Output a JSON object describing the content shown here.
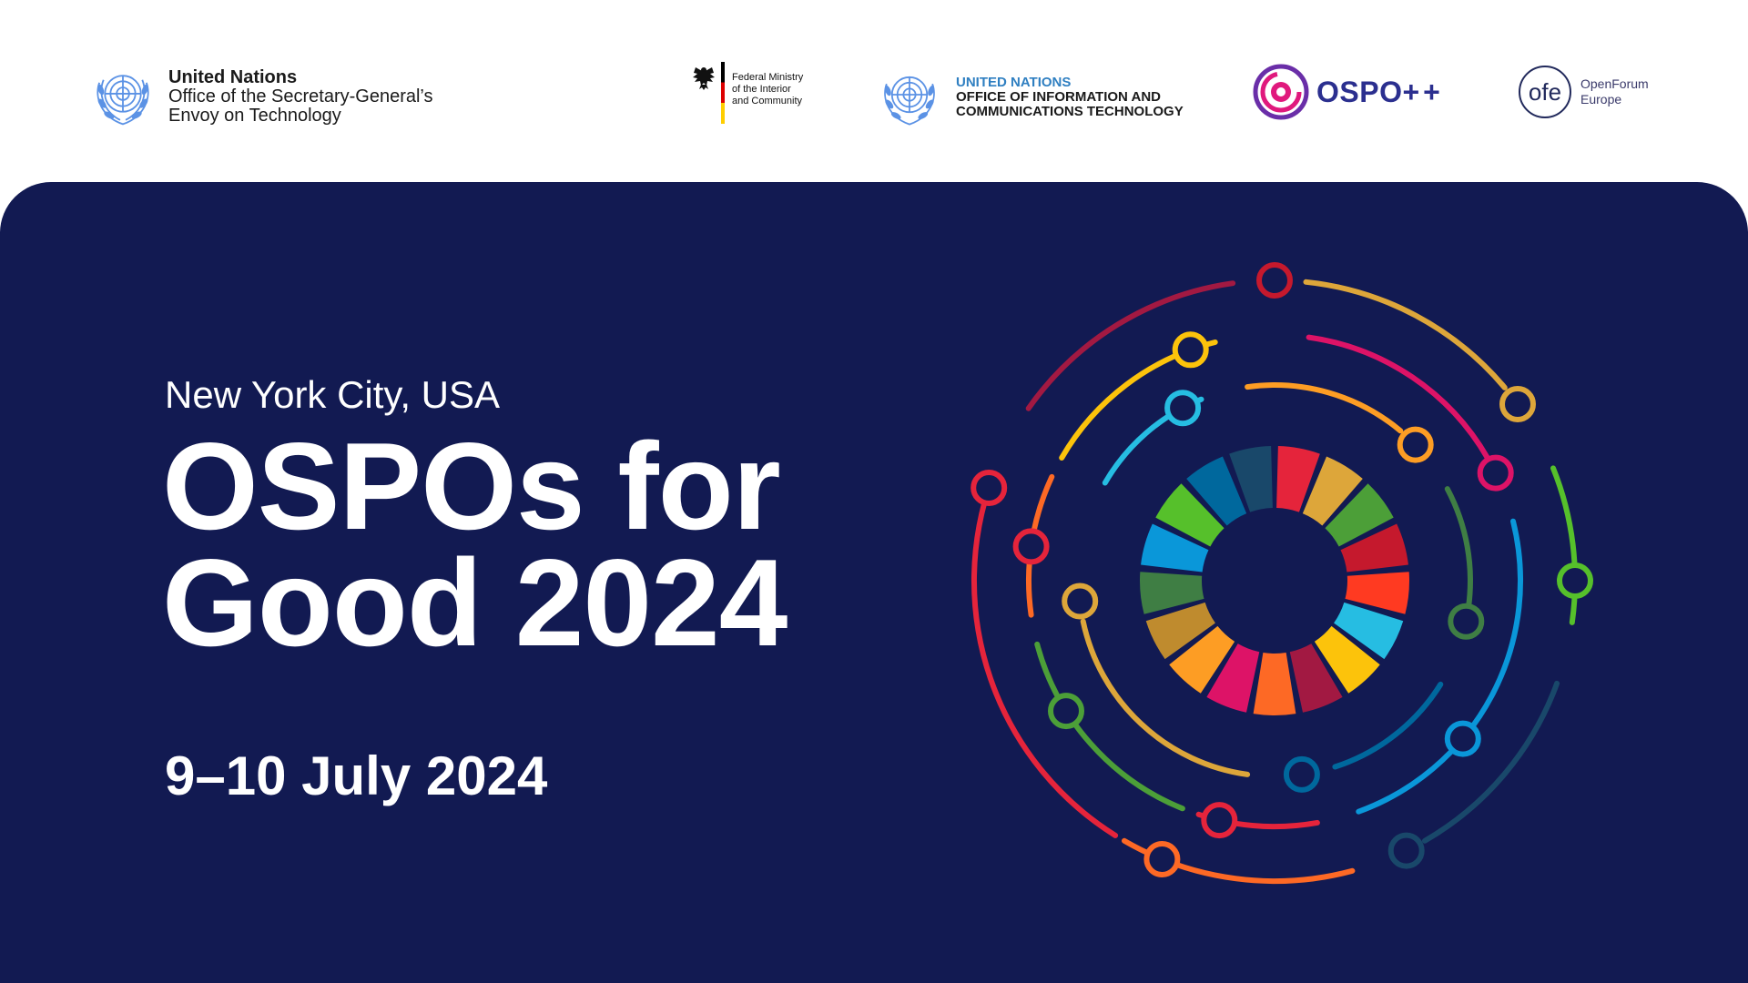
{
  "logos": {
    "un_osg": {
      "line1": "United Nations",
      "line2": "Office of the Secretary-General’s",
      "line3": "Envoy on Technology",
      "icon": "un-emblem-icon"
    },
    "bmi": {
      "line1": "Federal Ministry",
      "line2": "of the Interior",
      "line3": "and Community",
      "icon": "federal-eagle-icon"
    },
    "un_oict": {
      "line1": "UNITED NATIONS",
      "line2": "OFFICE OF INFORMATION AND",
      "line3": "COMMUNICATIONS TECHNOLOGY",
      "icon": "un-emblem-icon"
    },
    "ospo": {
      "name": "OSPO",
      "plus": "++",
      "icon": "ospo-rings-icon"
    },
    "ofe": {
      "mark": "ofe",
      "line1": "OpenForum",
      "line2": "Europe"
    }
  },
  "event": {
    "location": "New York City, USA",
    "title_line1": "OSPOs for",
    "title_line2": "Good 2024",
    "dates": "9–10 July 2024"
  },
  "colors": {
    "banner_background": "#121a52",
    "ospo_brand": "#e0197d",
    "un_blue": "#5b92e5"
  },
  "sdg_wheel": {
    "icon": "sdg-orbit-graphic",
    "segment_colors": [
      "#e5243b",
      "#dda63a",
      "#4c9f38",
      "#c5192d",
      "#ff3a21",
      "#26bde2",
      "#fcc30b",
      "#a21942",
      "#fd6925",
      "#dd1367",
      "#fd9d24",
      "#bf8b2e",
      "#3f7e44",
      "#0a97d9",
      "#56c02b",
      "#00689d",
      "#19486a"
    ]
  }
}
